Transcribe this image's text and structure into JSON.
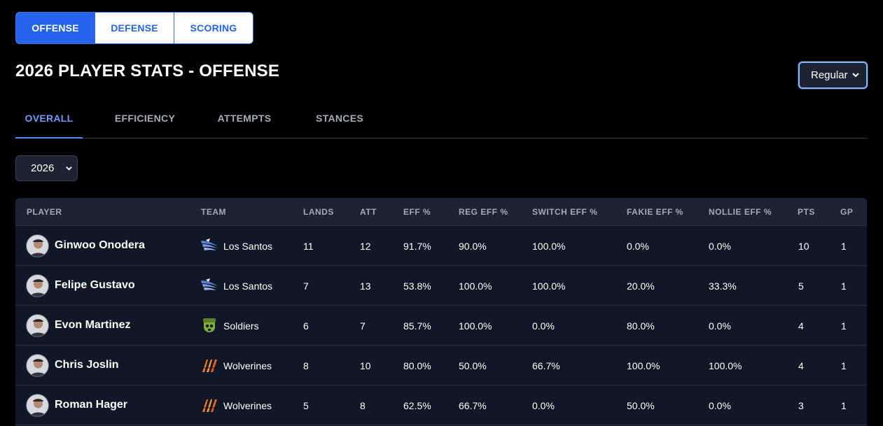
{
  "top_tabs": [
    {
      "label": "OFFENSE",
      "active": true
    },
    {
      "label": "DEFENSE",
      "active": false
    },
    {
      "label": "SCORING",
      "active": false
    }
  ],
  "page_title": "2026 PLAYER STATS - OFFENSE",
  "season_type": {
    "value": "Regular"
  },
  "sub_tabs": [
    {
      "label": "OVERALL",
      "active": true
    },
    {
      "label": "EFFICIENCY",
      "active": false
    },
    {
      "label": "ATTEMPTS",
      "active": false
    },
    {
      "label": "STANCES",
      "active": false
    }
  ],
  "year_select": {
    "value": "2026"
  },
  "columns": [
    "PLAYER",
    "TEAM",
    "LANDS",
    "ATT",
    "EFF %",
    "REG EFF %",
    "SWITCH EFF %",
    "FAKIE EFF %",
    "NOLLIE EFF %",
    "PTS",
    "GP"
  ],
  "rows": [
    {
      "player": "Ginwoo Onodera",
      "team": "Los Santos",
      "team_logo": "wing-logo-icon",
      "lands": "11",
      "att": "12",
      "eff": "91.7%",
      "reg_eff": "90.0%",
      "switch_eff": "100.0%",
      "fakie_eff": "0.0%",
      "nollie_eff": "0.0%",
      "pts": "10",
      "gp": "1"
    },
    {
      "player": "Felipe Gustavo",
      "team": "Los Santos",
      "team_logo": "wing-logo-icon",
      "lands": "7",
      "att": "13",
      "eff": "53.8%",
      "reg_eff": "100.0%",
      "switch_eff": "100.0%",
      "fakie_eff": "20.0%",
      "nollie_eff": "33.3%",
      "pts": "5",
      "gp": "1"
    },
    {
      "player": "Evon Martinez",
      "team": "Soldiers",
      "team_logo": "skull-helmet-logo-icon",
      "lands": "6",
      "att": "7",
      "eff": "85.7%",
      "reg_eff": "100.0%",
      "switch_eff": "0.0%",
      "fakie_eff": "80.0%",
      "nollie_eff": "0.0%",
      "pts": "4",
      "gp": "1"
    },
    {
      "player": "Chris Joslin",
      "team": "Wolverines",
      "team_logo": "claw-logo-icon",
      "lands": "8",
      "att": "10",
      "eff": "80.0%",
      "reg_eff": "50.0%",
      "switch_eff": "66.7%",
      "fakie_eff": "100.0%",
      "nollie_eff": "100.0%",
      "pts": "4",
      "gp": "1"
    },
    {
      "player": "Roman Hager",
      "team": "Wolverines",
      "team_logo": "claw-logo-icon",
      "lands": "5",
      "att": "8",
      "eff": "62.5%",
      "reg_eff": "66.7%",
      "switch_eff": "0.0%",
      "fakie_eff": "50.0%",
      "nollie_eff": "0.0%",
      "pts": "3",
      "gp": "1"
    }
  ],
  "colors": {
    "accent": "#2563eb",
    "active_subtab": "#6c9cff",
    "soldiers": "#7fae3a",
    "wolverines": "#f07a2a",
    "los_santos": "#5b7fd6"
  }
}
